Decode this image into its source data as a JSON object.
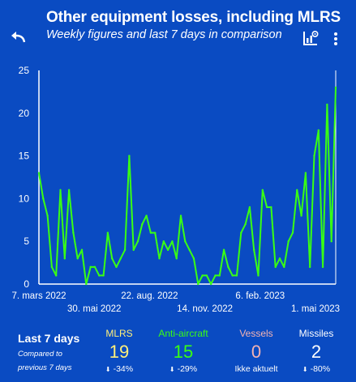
{
  "header": {
    "title": "Other equipment losses, including MLRS",
    "subtitle": "Weekly figures and last 7 days in comparison",
    "icons": [
      "undo-icon",
      "chart-settings-icon",
      "more-vert-icon"
    ]
  },
  "colors": {
    "background": "#0a4bc2",
    "line": "#39ff14",
    "mlrs": "#fff07a",
    "anti_aircraft": "#39ff14",
    "vessels": "#f4b3b3",
    "missiles": "#ffffff"
  },
  "chart_data": {
    "type": "line",
    "title": "",
    "xlabel": "",
    "ylabel": "",
    "ylim": [
      0,
      25
    ],
    "yticks": [
      0,
      5,
      10,
      15,
      20,
      25
    ],
    "xtick_labels": [
      "7. mars 2022",
      "30. mai 2022",
      "22. aug. 2022",
      "14. nov. 2022",
      "6. feb. 2023",
      "1. mai 2023"
    ],
    "grid": false,
    "legend": "none",
    "series": [
      {
        "values": [
          13,
          10,
          8,
          2,
          1,
          11,
          3,
          11,
          6,
          3,
          4,
          0,
          2,
          2,
          1,
          1,
          6,
          3,
          2,
          3,
          4,
          15,
          4,
          5,
          7,
          8,
          6,
          6,
          3,
          5,
          4,
          5,
          3,
          8,
          5,
          4,
          3,
          0,
          1,
          1,
          0,
          1,
          1,
          4,
          2,
          1,
          1,
          6,
          7,
          9,
          4,
          1,
          11,
          9,
          9,
          2,
          3,
          2,
          5,
          6,
          11,
          8,
          13,
          2,
          15,
          18,
          2,
          21,
          5,
          23
        ]
      }
    ]
  },
  "footer": {
    "title": "Last 7 days",
    "subtitle": "Compared to previous 7 days",
    "stats": [
      {
        "name": "MLRS",
        "value": "19",
        "change": "-34%"
      },
      {
        "name": "Anti-aircraft",
        "value": "15",
        "change": "-29%"
      },
      {
        "name": "Vessels",
        "value": "0",
        "change": "Ikke aktuelt"
      },
      {
        "name": "Missiles",
        "value": "2",
        "change": "-80%"
      }
    ]
  }
}
